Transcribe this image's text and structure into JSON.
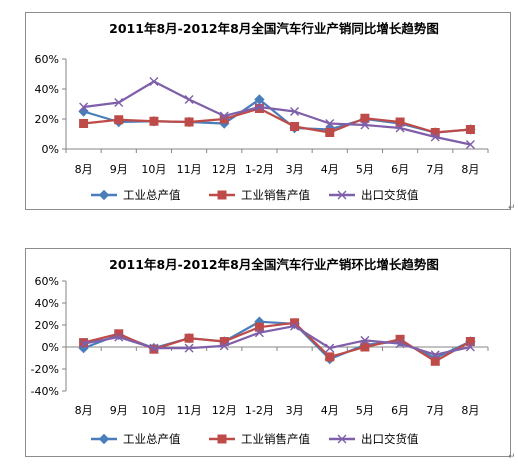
{
  "chart_data": [
    {
      "type": "line",
      "title": "2011年8月-2012年8月全国汽车行业产销同比增长趋势图",
      "categories": [
        "8月",
        "9月",
        "10月",
        "11月",
        "12月",
        "1-2月",
        "3月",
        "4月",
        "5月",
        "6月",
        "7月",
        "8月"
      ],
      "y_ticks": [
        "60%",
        "40%",
        "20%",
        "0%"
      ],
      "ylim": [
        0,
        60
      ],
      "xlabel": "",
      "ylabel": "",
      "grid": false,
      "legend": "bottom",
      "series": [
        {
          "name": "工业总产值",
          "color": "#4a7ebb",
          "marker": "diamond",
          "values": [
            25,
            18,
            18.5,
            18,
            17,
            33,
            14,
            13,
            20,
            17,
            11,
            13
          ]
        },
        {
          "name": "工业销售产值",
          "color": "#be4b48",
          "marker": "square",
          "values": [
            17,
            19.5,
            18.5,
            18,
            20,
            27,
            15,
            11,
            20.5,
            18,
            11,
            13
          ]
        },
        {
          "name": "出口交货值",
          "color": "#7f5fa9",
          "marker": "x",
          "values": [
            28,
            31,
            45,
            33,
            22,
            28,
            25,
            17,
            16,
            14,
            8,
            3
          ]
        }
      ]
    },
    {
      "type": "line",
      "title": "2011年8月-2012年8月全国汽车行业产销环比增长趋势图",
      "categories": [
        "8月",
        "9月",
        "10月",
        "11月",
        "12月",
        "1-2月",
        "3月",
        "4月",
        "5月",
        "6月",
        "7月",
        "8月"
      ],
      "y_ticks": [
        "60%",
        "40%",
        "20%",
        "0%",
        "-20%",
        "-40%"
      ],
      "ylim": [
        -40,
        60
      ],
      "xlabel": "",
      "ylabel": "",
      "grid": false,
      "legend": "bottom",
      "series": [
        {
          "name": "工业总产值",
          "color": "#4a7ebb",
          "marker": "diamond",
          "values": [
            -1,
            11,
            -1,
            8,
            5,
            23,
            21,
            -11,
            2,
            5,
            -10,
            5
          ]
        },
        {
          "name": "工业销售产值",
          "color": "#be4b48",
          "marker": "square",
          "values": [
            4,
            12,
            -2,
            8,
            5,
            18,
            22,
            -9,
            0,
            7,
            -13,
            5
          ]
        },
        {
          "name": "出口交货值",
          "color": "#7f5fa9",
          "marker": "x",
          "values": [
            3,
            9,
            -1,
            -1,
            1,
            13,
            19,
            -1,
            6,
            3,
            -7,
            0
          ]
        }
      ]
    }
  ]
}
